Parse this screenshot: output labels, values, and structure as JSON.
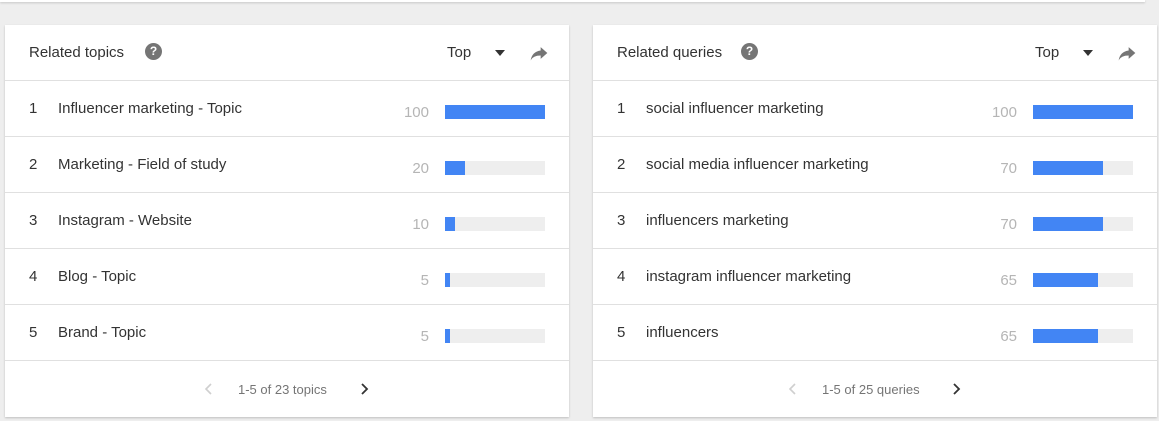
{
  "colors": {
    "bar": "#4285f4",
    "bar_track": "#eeeeee",
    "value_text": "#b5b5b5"
  },
  "topics": {
    "title": "Related topics",
    "help_icon": "?",
    "dropdown": "Top",
    "share_icon": "share-arrow-icon",
    "rows": [
      {
        "rank": "1",
        "label": "Influencer marketing - Topic",
        "value": 100
      },
      {
        "rank": "2",
        "label": "Marketing - Field of study",
        "value": 20
      },
      {
        "rank": "3",
        "label": "Instagram - Website",
        "value": 10
      },
      {
        "rank": "4",
        "label": "Blog - Topic",
        "value": 5
      },
      {
        "rank": "5",
        "label": "Brand - Topic",
        "value": 5
      }
    ],
    "pagination": "1-5 of 23 topics"
  },
  "queries": {
    "title": "Related queries",
    "help_icon": "?",
    "dropdown": "Top",
    "share_icon": "share-arrow-icon",
    "rows": [
      {
        "rank": "1",
        "label": "social influencer marketing",
        "value": 100
      },
      {
        "rank": "2",
        "label": "social media influencer marketing",
        "value": 70
      },
      {
        "rank": "3",
        "label": "influencers marketing",
        "value": 70
      },
      {
        "rank": "4",
        "label": "instagram influencer marketing",
        "value": 65
      },
      {
        "rank": "5",
        "label": "influencers",
        "value": 65
      }
    ],
    "pagination": "1-5 of 25 queries"
  }
}
